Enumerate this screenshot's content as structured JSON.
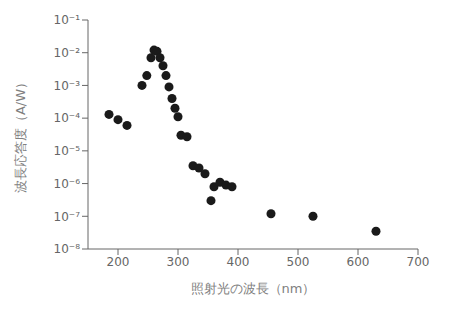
{
  "chart_data": {
    "type": "scatter",
    "xlabel": "照射光の波長（nm）",
    "ylabel": "波長応答度（A/W）",
    "x": [
      185,
      200,
      215,
      240,
      248,
      255,
      260,
      265,
      270,
      275,
      280,
      285,
      290,
      295,
      300,
      305,
      315,
      325,
      335,
      345,
      355,
      360,
      370,
      380,
      390,
      455,
      525,
      630
    ],
    "values": [
      0.00013,
      9e-05,
      6e-05,
      0.001,
      0.002,
      0.007,
      0.012,
      0.011,
      0.007,
      0.004,
      0.002,
      0.0009,
      0.0004,
      0.0002,
      0.00011,
      3e-05,
      2.7e-05,
      3.5e-06,
      3e-06,
      2e-06,
      3e-07,
      8e-07,
      1.1e-06,
      9e-07,
      8e-07,
      1.2e-07,
      1e-07,
      3.5e-08
    ],
    "xlim": [
      150,
      700
    ],
    "ylim": [
      1e-08,
      0.1
    ],
    "xticks": [
      200,
      300,
      400,
      500,
      600,
      700
    ],
    "yticks": [
      {
        "value": 1e-08,
        "label": "10⁻⁸"
      },
      {
        "value": 1e-07,
        "label": "10⁻⁷"
      },
      {
        "value": 1e-06,
        "label": "10⁻⁶"
      },
      {
        "value": 1e-05,
        "label": "10⁻⁵"
      },
      {
        "value": 0.0001,
        "label": "10⁻⁴"
      },
      {
        "value": 0.001,
        "label": "10⁻³"
      },
      {
        "value": 0.01,
        "label": "10⁻²"
      },
      {
        "value": 0.1,
        "label": "10⁻¹"
      }
    ],
    "log": "y",
    "color": "#1a1a1a",
    "marker": "circle"
  }
}
